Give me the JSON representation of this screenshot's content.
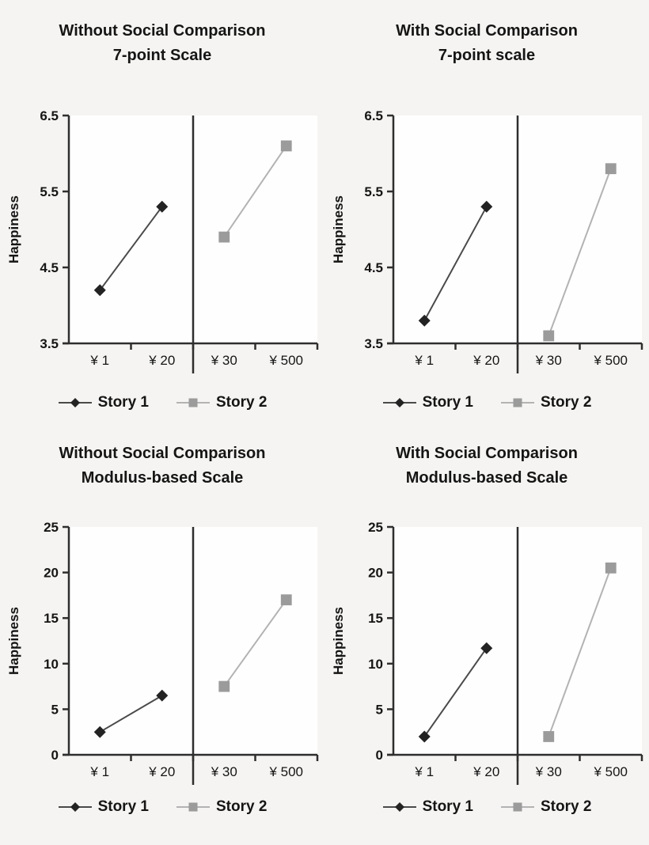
{
  "page": {
    "background": "#f5f4f2",
    "plot_background": "#fefefe",
    "text_color": "#151515"
  },
  "colors": {
    "axis": "#2e2e2e",
    "divider": "#2e2e2e",
    "plot_bg": "#fefefe"
  },
  "chart_data": [
    {
      "type": "line",
      "title_line1": "Without Social Comparison",
      "title_line2": "7-point Scale",
      "ylabel": "Happiness",
      "ylim": [
        3.5,
        6.5
      ],
      "yticks": [
        "3.5",
        "4.5",
        "5.5",
        "6.5"
      ],
      "categories": [
        "¥ 1",
        "¥ 20",
        "¥ 30",
        "¥ 500"
      ],
      "divider_after_category": 2,
      "grid": false,
      "legend_position": "bottom",
      "series": [
        {
          "name": "Story 1",
          "marker": "diamond",
          "marker_color": "#232323",
          "line_color": "#4a4a4a",
          "values": [
            4.2,
            5.3,
            null,
            null
          ]
        },
        {
          "name": "Story 2",
          "marker": "square",
          "marker_color": "#9b9b9b",
          "line_color": "#b3b3b3",
          "values": [
            null,
            null,
            4.9,
            6.1
          ]
        }
      ]
    },
    {
      "type": "line",
      "title_line1": "With Social Comparison",
      "title_line2": "7-point scale",
      "ylabel": "Happiness",
      "ylim": [
        3.5,
        6.5
      ],
      "yticks": [
        "3.5",
        "4.5",
        "5.5",
        "6.5"
      ],
      "categories": [
        "¥ 1",
        "¥ 20",
        "¥ 30",
        "¥ 500"
      ],
      "divider_after_category": 2,
      "grid": false,
      "legend_position": "bottom",
      "series": [
        {
          "name": "Story 1",
          "marker": "diamond",
          "marker_color": "#232323",
          "line_color": "#4a4a4a",
          "values": [
            3.8,
            5.3,
            null,
            null
          ]
        },
        {
          "name": "Story 2",
          "marker": "square",
          "marker_color": "#9b9b9b",
          "line_color": "#b3b3b3",
          "values": [
            null,
            null,
            3.6,
            5.8
          ]
        }
      ]
    },
    {
      "type": "line",
      "title_line1": "Without Social Comparison",
      "title_line2": "Modulus-based Scale",
      "ylabel": "Happiness",
      "ylim": [
        0,
        25
      ],
      "yticks": [
        "0",
        "5",
        "10",
        "15",
        "20",
        "25"
      ],
      "categories": [
        "¥ 1",
        "¥ 20",
        "¥ 30",
        "¥ 500"
      ],
      "divider_after_category": 2,
      "grid": false,
      "legend_position": "bottom",
      "series": [
        {
          "name": "Story 1",
          "marker": "diamond",
          "marker_color": "#232323",
          "line_color": "#4a4a4a",
          "values": [
            2.5,
            6.5,
            null,
            null
          ]
        },
        {
          "name": "Story 2",
          "marker": "square",
          "marker_color": "#9b9b9b",
          "line_color": "#b3b3b3",
          "values": [
            null,
            null,
            7.5,
            17
          ]
        }
      ]
    },
    {
      "type": "line",
      "title_line1": "With Social Comparison",
      "title_line2": "Modulus-based Scale",
      "ylabel": "Happiness",
      "ylim": [
        0,
        25
      ],
      "yticks": [
        "0",
        "5",
        "10",
        "15",
        "20",
        "25"
      ],
      "categories": [
        "¥ 1",
        "¥ 20",
        "¥ 30",
        "¥ 500"
      ],
      "divider_after_category": 2,
      "grid": false,
      "legend_position": "bottom",
      "series": [
        {
          "name": "Story 1",
          "marker": "diamond",
          "marker_color": "#232323",
          "line_color": "#4a4a4a",
          "values": [
            2,
            11.7,
            null,
            null
          ]
        },
        {
          "name": "Story 2",
          "marker": "square",
          "marker_color": "#9b9b9b",
          "line_color": "#b3b3b3",
          "values": [
            null,
            null,
            2,
            20.5
          ]
        }
      ]
    }
  ]
}
